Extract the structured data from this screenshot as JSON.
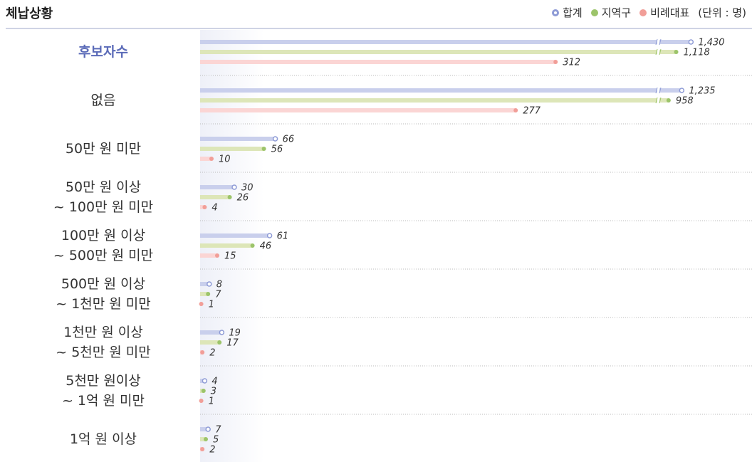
{
  "chart_data": {
    "type": "bar",
    "orientation": "horizontal",
    "title": "체납상황",
    "unit": "(단위 : 명)",
    "categories": [
      "후보자수",
      "없음",
      "50만 원 미만",
      "50만 원 이상\n~ 100만 원 미만",
      "100만 원 이상\n~ 500만 원 미만",
      "500만 원 이상\n~ 1천만 원 미만",
      "1천만 원 이상\n~ 5천만 원 미만",
      "5천만 원이상\n~ 1억 원 미만",
      "1억 원 이상"
    ],
    "series": [
      {
        "name": "합계",
        "color": "#c9cfec",
        "marker_color": "#8e9bd6",
        "values": [
          1430,
          1235,
          66,
          30,
          61,
          8,
          19,
          4,
          7
        ],
        "value_labels": [
          "1,430",
          "1,235",
          "66",
          "30",
          "61",
          "8",
          "19",
          "4",
          "7"
        ]
      },
      {
        "name": "지역구",
        "color": "#dde6b8",
        "marker_color": "#9cc46a",
        "values": [
          1118,
          958,
          56,
          26,
          46,
          7,
          17,
          3,
          5
        ],
        "value_labels": [
          "1,118",
          "958",
          "56",
          "26",
          "46",
          "7",
          "17",
          "3",
          "5"
        ]
      },
      {
        "name": "비례대표",
        "color": "#fbd5d4",
        "marker_color": "#f19e98",
        "values": [
          312,
          277,
          10,
          4,
          15,
          1,
          2,
          1,
          2
        ],
        "value_labels": [
          "312",
          "277",
          "10",
          "4",
          "15",
          "1",
          "2",
          "1",
          "2"
        ]
      }
    ],
    "xlim": [
      0,
      1500
    ],
    "x_break": [
      400,
      900
    ]
  }
}
